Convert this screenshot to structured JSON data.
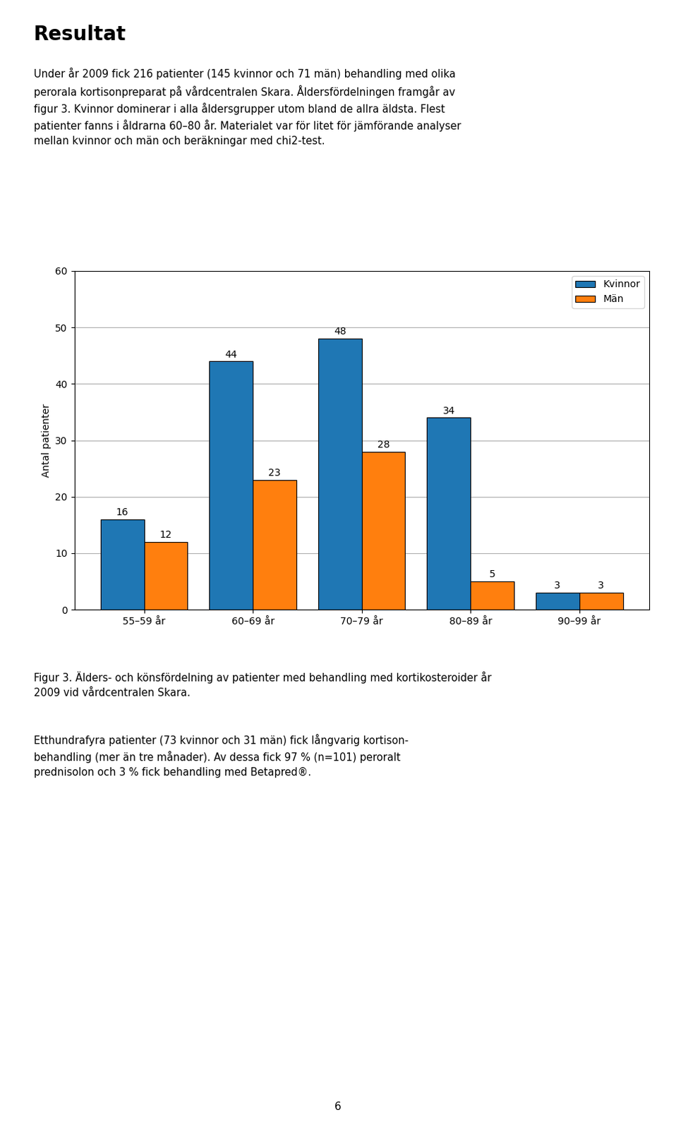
{
  "chart_data": {
    "type": "bar",
    "title": "Resultat",
    "annotations": [
      "Under år 2009 fick 216 patienter (145 kvinnor och 71 män) behandling med olika\nperorala kortisonpreparat på vårdcentralen Skara. Åldersfördelningen framgår av\nfigur 3. Kvinnor dominerar i alla åldersgrupper utom bland de allra äldsta. Flest\npatienter fanns i åldrarna 60–80 år. Materialet var för litet för jämförande analyser\nmellan kvinnor och män och beräkningar med chi2-test.",
      "Figur 3. Älders- och könsfördelning av patienter med behandling med kortikosteroider år\n2009 vid vårdcentralen Skara.",
      "Etthundrafyra patienter (73 kvinnor och 31 män) fick långvarig kortison-\nbehandling (mer än tre månader). Av dessa fick 97 % (n=101) peroralt\nprednisolon och 3 % fick behandling med Betapred®.",
      "6"
    ],
    "categories": [
      "55–59 år",
      "60–69 år",
      "70–79 år",
      "80–89 år",
      "90–99 år"
    ],
    "series": [
      {
        "name": "Kvinnor",
        "values": [
          16,
          44,
          48,
          34,
          3
        ]
      },
      {
        "name": "Män",
        "values": [
          12,
          23,
          28,
          5,
          3
        ]
      }
    ],
    "ylabel": "Antal patienter",
    "ylim": [
      0,
      60
    ],
    "yticks": [
      0,
      10,
      20,
      30,
      40,
      50,
      60
    ],
    "grid": true,
    "legend": "upper right",
    "data_labels": true
  }
}
